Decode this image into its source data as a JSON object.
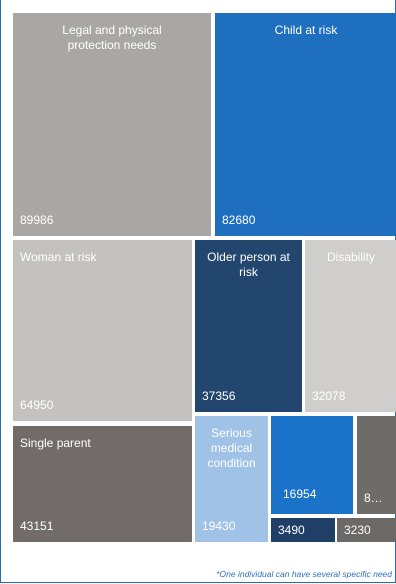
{
  "chart_data": {
    "type": "treemap",
    "items": [
      {
        "label": "Legal and physical protection needs",
        "value": 89986,
        "value_text": "89986",
        "color": "#a9a7a6"
      },
      {
        "label": "Child at risk",
        "value": 82680,
        "value_text": "82680",
        "color": "#1f6fc1"
      },
      {
        "label": "Woman at risk",
        "value": 64950,
        "value_text": "64950",
        "color": "#c4c2c1"
      },
      {
        "label": "Older person at risk",
        "value": 37356,
        "value_text": "37356",
        "color": "#23466f"
      },
      {
        "label": "Disability",
        "value": 32078,
        "value_text": "32078",
        "color": "#cfcecd"
      },
      {
        "label": "Single parent",
        "value": 43151,
        "value_text": "43151",
        "color": "#716c69"
      },
      {
        "label": "Serious medical condition",
        "value": 19430,
        "value_text": "19430",
        "color": "#9fc2e6"
      },
      {
        "label": "",
        "value": 16954,
        "value_text": "16954",
        "color": "#1a73c8"
      },
      {
        "label": "",
        "value": null,
        "value_text": "8…",
        "color": "#6e6b69"
      },
      {
        "label": "",
        "value": 3490,
        "value_text": "3490",
        "color": "#1f3f66"
      },
      {
        "label": "",
        "value": 3230,
        "value_text": "3230",
        "color": "#6b6866"
      }
    ]
  },
  "footnote": "*One individual can have several specific need"
}
